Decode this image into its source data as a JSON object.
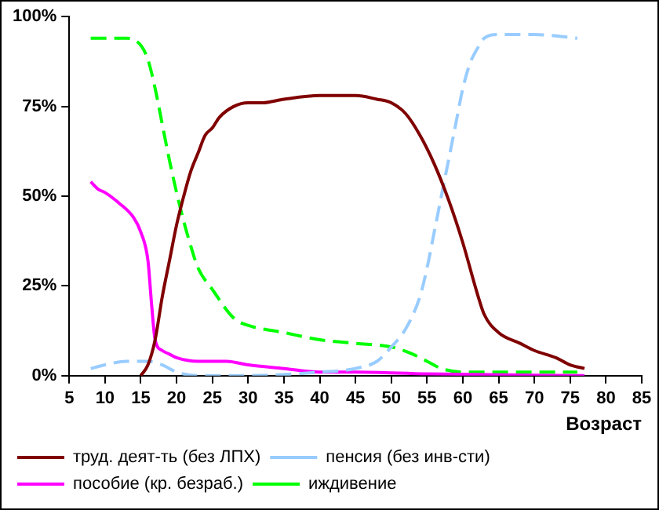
{
  "chart_data": {
    "type": "line",
    "xlabel": "Возраст",
    "xlim": [
      5,
      85
    ],
    "xticks": [
      5,
      10,
      15,
      20,
      25,
      30,
      35,
      40,
      45,
      50,
      55,
      60,
      65,
      70,
      75,
      80,
      85
    ],
    "ylim": [
      0,
      100
    ],
    "yticks": [
      {
        "value": 0,
        "label": "0%"
      },
      {
        "value": 25,
        "label": "25%"
      },
      {
        "value": 50,
        "label": "50%"
      },
      {
        "value": 75,
        "label": "75%"
      },
      {
        "value": 100,
        "label": "100%"
      }
    ],
    "grid": false,
    "legend": "bottom",
    "marker": "none",
    "series": [
      {
        "name": "труд. деят-ть (без ЛПХ)",
        "color": "#800000",
        "line_style": "solid",
        "x": [
          15,
          16,
          17,
          18,
          19,
          20,
          21,
          22,
          23,
          24,
          25,
          26,
          28,
          30,
          32,
          35,
          40,
          45,
          48,
          50,
          52,
          54,
          56,
          58,
          60,
          62,
          63,
          65,
          68,
          70,
          73,
          75,
          77
        ],
        "values": [
          0,
          3,
          10,
          22,
          32,
          42,
          50,
          57,
          62,
          67,
          69,
          72,
          75,
          76,
          76,
          77,
          78,
          78,
          77,
          76,
          73,
          67,
          59,
          49,
          37,
          23,
          17,
          12,
          9,
          7,
          5,
          3,
          2
        ]
      },
      {
        "name": "пенсия (без инв-сти)",
        "color": "#99ccff",
        "line_style": "dashed",
        "x": [
          8,
          10,
          13,
          16,
          18,
          20,
          23,
          30,
          40,
          45,
          48,
          50,
          52,
          54,
          55,
          56,
          57,
          58,
          59,
          60,
          61,
          62,
          63,
          65,
          70,
          76
        ],
        "values": [
          2,
          3,
          4,
          4,
          3,
          1,
          0,
          0,
          1,
          2,
          4,
          8,
          13,
          22,
          30,
          40,
          50,
          60,
          70,
          80,
          87,
          91,
          94,
          95,
          95,
          94
        ]
      },
      {
        "name": "пособие (кр. безраб.)",
        "color": "#ff00ff",
        "line_style": "solid",
        "x": [
          8,
          9,
          10,
          12,
          14,
          15,
          16,
          16.5,
          17,
          18,
          19,
          20,
          23,
          25,
          27,
          30,
          35,
          40,
          45,
          55,
          77
        ],
        "values": [
          54,
          52,
          51,
          48,
          44,
          40,
          32,
          20,
          10,
          7,
          6,
          5,
          4,
          4,
          4,
          3,
          2,
          1,
          1,
          0.5,
          0
        ]
      },
      {
        "name": "иждивение",
        "color": "#00ff00",
        "line_style": "dashed",
        "x": [
          8,
          10,
          13,
          15,
          16,
          17,
          18,
          19,
          20,
          21,
          22,
          23,
          25,
          28,
          30,
          35,
          40,
          45,
          50,
          53,
          55,
          57,
          60,
          65,
          70,
          76
        ],
        "values": [
          94,
          94,
          94,
          92,
          88,
          80,
          70,
          60,
          51,
          43,
          36,
          30,
          24,
          16,
          14,
          12,
          10,
          9,
          8,
          6,
          4,
          2,
          1,
          1,
          1,
          1
        ]
      }
    ]
  }
}
